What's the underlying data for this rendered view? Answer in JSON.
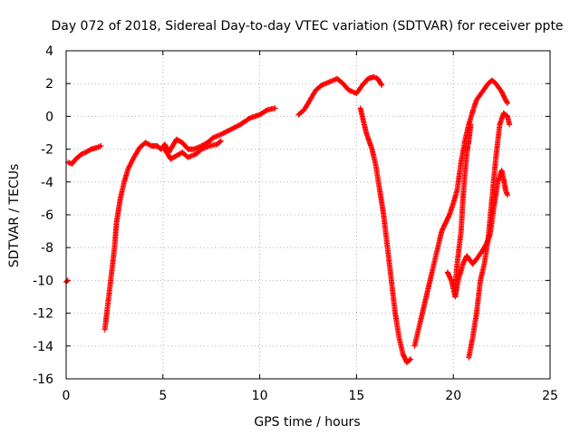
{
  "chart_data": {
    "type": "scatter",
    "title": "Day 072 of 2018, Sidereal Day-to-day VTEC variation (SDTVAR) for receiver ppte",
    "xlabel": "GPS time / hours",
    "ylabel": "SDTVAR / TECUs",
    "xlim": [
      0,
      25
    ],
    "ylim": [
      -16,
      4
    ],
    "xticks": [
      "0",
      "5",
      "10",
      "15",
      "20",
      "25"
    ],
    "yticks": [
      "4",
      "2",
      "0",
      "-2",
      "-4",
      "-6",
      "-8",
      "-10",
      "-12",
      "-14",
      "-16"
    ],
    "grid": true,
    "marker": "plus",
    "color": "#ff0000",
    "series": [
      {
        "segments": [
          [
            [
              0.0,
              -10.1
            ],
            [
              0.08,
              -10.0
            ]
          ],
          [
            [
              0.1,
              -2.8
            ],
            [
              0.3,
              -2.9
            ],
            [
              0.5,
              -2.6
            ],
            [
              0.8,
              -2.3
            ],
            [
              1.0,
              -2.2
            ],
            [
              1.3,
              -2.0
            ],
            [
              1.6,
              -1.9
            ],
            [
              1.8,
              -1.8
            ]
          ],
          [
            [
              2.0,
              -13.0
            ],
            [
              2.1,
              -12.0
            ],
            [
              2.3,
              -10.0
            ],
            [
              2.5,
              -8.0
            ],
            [
              2.6,
              -6.5
            ],
            [
              2.8,
              -5.0
            ],
            [
              3.0,
              -4.0
            ],
            [
              3.2,
              -3.2
            ],
            [
              3.5,
              -2.5
            ],
            [
              3.8,
              -1.9
            ],
            [
              4.1,
              -1.6
            ],
            [
              4.4,
              -1.8
            ],
            [
              4.7,
              -1.8
            ],
            [
              4.9,
              -2.0
            ],
            [
              5.1,
              -1.7
            ],
            [
              5.3,
              -2.2
            ],
            [
              5.5,
              -1.8
            ],
            [
              5.7,
              -1.4
            ],
            [
              6.0,
              -1.6
            ],
            [
              6.3,
              -2.0
            ],
            [
              6.6,
              -2.0
            ],
            [
              7.0,
              -1.8
            ],
            [
              7.3,
              -1.6
            ],
            [
              7.6,
              -1.3
            ],
            [
              8.0,
              -1.1
            ],
            [
              8.5,
              -0.8
            ],
            [
              9.0,
              -0.5
            ],
            [
              9.5,
              -0.1
            ],
            [
              10.0,
              0.1
            ],
            [
              10.4,
              0.4
            ],
            [
              10.8,
              0.5
            ]
          ],
          [
            [
              5.0,
              -1.9
            ],
            [
              5.2,
              -2.2
            ],
            [
              5.4,
              -2.6
            ],
            [
              5.7,
              -2.4
            ],
            [
              6.0,
              -2.2
            ],
            [
              6.3,
              -2.5
            ],
            [
              6.7,
              -2.3
            ],
            [
              7.0,
              -2.0
            ],
            [
              7.4,
              -1.8
            ],
            [
              7.8,
              -1.7
            ],
            [
              8.0,
              -1.5
            ]
          ],
          [
            [
              12.0,
              0.1
            ],
            [
              12.3,
              0.4
            ],
            [
              12.6,
              1.0
            ],
            [
              12.9,
              1.6
            ],
            [
              13.2,
              1.9
            ],
            [
              13.6,
              2.1
            ],
            [
              14.0,
              2.3
            ],
            [
              14.3,
              2.0
            ],
            [
              14.6,
              1.6
            ],
            [
              15.0,
              1.4
            ],
            [
              15.3,
              1.9
            ],
            [
              15.6,
              2.3
            ],
            [
              15.9,
              2.4
            ],
            [
              16.1,
              2.3
            ],
            [
              16.3,
              1.9
            ]
          ],
          [
            [
              15.2,
              0.5
            ],
            [
              15.5,
              -1.0
            ],
            [
              15.8,
              -2.0
            ],
            [
              16.0,
              -3.0
            ],
            [
              16.2,
              -4.5
            ],
            [
              16.4,
              -6.0
            ],
            [
              16.6,
              -8.0
            ],
            [
              16.8,
              -10.0
            ],
            [
              17.0,
              -12.0
            ],
            [
              17.2,
              -13.5
            ],
            [
              17.4,
              -14.5
            ],
            [
              17.6,
              -15.0
            ],
            [
              17.8,
              -14.8
            ]
          ],
          [
            [
              18.0,
              -14.0
            ],
            [
              18.2,
              -13.0
            ],
            [
              18.4,
              -12.0
            ],
            [
              18.6,
              -11.0
            ],
            [
              18.8,
              -10.0
            ],
            [
              19.0,
              -9.0
            ],
            [
              19.2,
              -8.0
            ],
            [
              19.4,
              -7.0
            ],
            [
              19.6,
              -6.5
            ],
            [
              19.8,
              -6.0
            ],
            [
              20.0,
              -5.3
            ],
            [
              20.2,
              -4.5
            ],
            [
              20.4,
              -2.8
            ],
            [
              20.6,
              -1.5
            ],
            [
              20.8,
              -0.5
            ],
            [
              21.0,
              0.3
            ],
            [
              21.2,
              1.0
            ],
            [
              21.5,
              1.5
            ],
            [
              21.8,
              2.0
            ],
            [
              22.0,
              2.2
            ],
            [
              22.2,
              2.0
            ],
            [
              22.5,
              1.5
            ],
            [
              22.7,
              1.0
            ],
            [
              22.8,
              0.8
            ]
          ],
          [
            [
              19.7,
              -9.5
            ],
            [
              19.9,
              -10.0
            ],
            [
              20.0,
              -10.5
            ],
            [
              20.1,
              -11.0
            ],
            [
              20.2,
              -10.3
            ],
            [
              20.3,
              -9.8
            ],
            [
              20.5,
              -9.0
            ],
            [
              20.7,
              -8.5
            ],
            [
              21.0,
              -9.0
            ],
            [
              21.2,
              -8.7
            ],
            [
              21.5,
              -8.2
            ],
            [
              21.7,
              -7.8
            ],
            [
              21.9,
              -7.2
            ],
            [
              22.1,
              -5.5
            ],
            [
              22.3,
              -4.0
            ],
            [
              22.5,
              -3.3
            ],
            [
              22.6,
              -3.8
            ],
            [
              22.7,
              -4.5
            ],
            [
              22.8,
              -4.8
            ]
          ],
          [
            [
              20.1,
              -10.3
            ],
            [
              20.2,
              -9.0
            ],
            [
              20.4,
              -7.0
            ],
            [
              20.5,
              -5.0
            ],
            [
              20.6,
              -3.5
            ],
            [
              20.7,
              -2.2
            ],
            [
              20.8,
              -1.5
            ],
            [
              20.9,
              -0.5
            ]
          ],
          [
            [
              20.8,
              -14.7
            ],
            [
              21.0,
              -13.5
            ],
            [
              21.2,
              -12.0
            ],
            [
              21.4,
              -10.0
            ],
            [
              21.6,
              -9.0
            ],
            [
              21.8,
              -7.5
            ],
            [
              22.0,
              -5.0
            ],
            [
              22.2,
              -2.5
            ],
            [
              22.4,
              -0.5
            ],
            [
              22.6,
              0.2
            ],
            [
              22.8,
              0.0
            ],
            [
              22.9,
              -0.5
            ]
          ]
        ]
      }
    ]
  }
}
